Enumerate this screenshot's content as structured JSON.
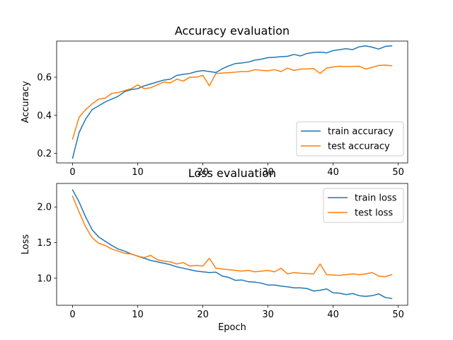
{
  "chart_data": [
    {
      "type": "line",
      "title": "Accuracy evaluation",
      "xlabel": "",
      "ylabel": "Accuracy",
      "xlim": [
        -2.45,
        51.45
      ],
      "ylim": [
        0.15,
        0.79
      ],
      "xticks": [
        0,
        10,
        20,
        30,
        40,
        50
      ],
      "yticks": [
        0.2,
        0.4,
        0.6
      ],
      "xtick_labels": [
        "0",
        "10",
        "20",
        "30",
        "40",
        "50"
      ],
      "ytick_labels": [
        "0.2",
        "0.4",
        "0.6"
      ],
      "legend_position": "lower-right",
      "x": [
        0,
        1,
        2,
        3,
        4,
        5,
        6,
        7,
        8,
        9,
        10,
        11,
        12,
        13,
        14,
        15,
        16,
        17,
        18,
        19,
        20,
        21,
        22,
        23,
        24,
        25,
        26,
        27,
        28,
        29,
        30,
        31,
        32,
        33,
        34,
        35,
        36,
        37,
        38,
        39,
        40,
        41,
        42,
        43,
        44,
        45,
        46,
        47,
        48,
        49
      ],
      "series": [
        {
          "name": "train accuracy",
          "color": "#1f77b4",
          "values": [
            0.175,
            0.31,
            0.38,
            0.43,
            0.45,
            0.47,
            0.485,
            0.5,
            0.525,
            0.535,
            0.54,
            0.555,
            0.565,
            0.575,
            0.585,
            0.59,
            0.61,
            0.615,
            0.62,
            0.63,
            0.635,
            0.63,
            0.625,
            0.645,
            0.66,
            0.672,
            0.675,
            0.68,
            0.69,
            0.695,
            0.703,
            0.705,
            0.708,
            0.71,
            0.72,
            0.712,
            0.725,
            0.73,
            0.732,
            0.728,
            0.74,
            0.745,
            0.75,
            0.745,
            0.76,
            0.765,
            0.758,
            0.748,
            0.762,
            0.765
          ]
        },
        {
          "name": "test accuracy",
          "color": "#ff7f0e",
          "values": [
            0.275,
            0.39,
            0.43,
            0.46,
            0.485,
            0.49,
            0.515,
            0.52,
            0.53,
            0.54,
            0.56,
            0.54,
            0.545,
            0.56,
            0.575,
            0.57,
            0.59,
            0.58,
            0.6,
            0.6,
            0.61,
            0.555,
            0.62,
            0.622,
            0.624,
            0.627,
            0.63,
            0.63,
            0.64,
            0.636,
            0.634,
            0.64,
            0.63,
            0.648,
            0.636,
            0.643,
            0.644,
            0.646,
            0.62,
            0.648,
            0.654,
            0.658,
            0.656,
            0.657,
            0.658,
            0.643,
            0.652,
            0.662,
            0.664,
            0.66
          ]
        }
      ]
    },
    {
      "type": "line",
      "title": "Loss evaluation",
      "xlabel": "Epoch",
      "ylabel": "Loss",
      "xlim": [
        -2.45,
        51.45
      ],
      "ylim": [
        0.62,
        2.33
      ],
      "xticks": [
        0,
        10,
        20,
        30,
        40,
        50
      ],
      "yticks": [
        1.0,
        1.5,
        2.0
      ],
      "xtick_labels": [
        "0",
        "10",
        "20",
        "30",
        "40",
        "50"
      ],
      "ytick_labels": [
        "1.0",
        "1.5",
        "2.0"
      ],
      "legend_position": "upper-right",
      "x": [
        0,
        1,
        2,
        3,
        4,
        5,
        6,
        7,
        8,
        9,
        10,
        11,
        12,
        13,
        14,
        15,
        16,
        17,
        18,
        19,
        20,
        21,
        22,
        23,
        24,
        25,
        26,
        27,
        28,
        29,
        30,
        31,
        32,
        33,
        34,
        35,
        36,
        37,
        38,
        39,
        40,
        41,
        42,
        43,
        44,
        45,
        46,
        47,
        48,
        49
      ],
      "series": [
        {
          "name": "train loss",
          "color": "#1f77b4",
          "values": [
            2.24,
            2.07,
            1.86,
            1.68,
            1.58,
            1.52,
            1.46,
            1.41,
            1.38,
            1.34,
            1.31,
            1.28,
            1.25,
            1.23,
            1.21,
            1.19,
            1.16,
            1.14,
            1.12,
            1.1,
            1.09,
            1.08,
            1.085,
            1.03,
            1.01,
            0.97,
            0.975,
            0.95,
            0.945,
            0.93,
            0.905,
            0.905,
            0.89,
            0.88,
            0.865,
            0.865,
            0.855,
            0.82,
            0.83,
            0.85,
            0.795,
            0.79,
            0.77,
            0.785,
            0.755,
            0.745,
            0.755,
            0.78,
            0.73,
            0.715
          ]
        },
        {
          "name": "test loss",
          "color": "#ff7f0e",
          "values": [
            2.15,
            1.93,
            1.72,
            1.57,
            1.49,
            1.46,
            1.41,
            1.38,
            1.35,
            1.34,
            1.31,
            1.29,
            1.32,
            1.26,
            1.24,
            1.23,
            1.2,
            1.22,
            1.17,
            1.18,
            1.17,
            1.28,
            1.14,
            1.13,
            1.12,
            1.11,
            1.1,
            1.11,
            1.09,
            1.1,
            1.11,
            1.09,
            1.14,
            1.06,
            1.08,
            1.07,
            1.065,
            1.06,
            1.2,
            1.05,
            1.045,
            1.04,
            1.05,
            1.06,
            1.05,
            1.06,
            1.08,
            1.03,
            1.02,
            1.05
          ]
        }
      ]
    }
  ]
}
